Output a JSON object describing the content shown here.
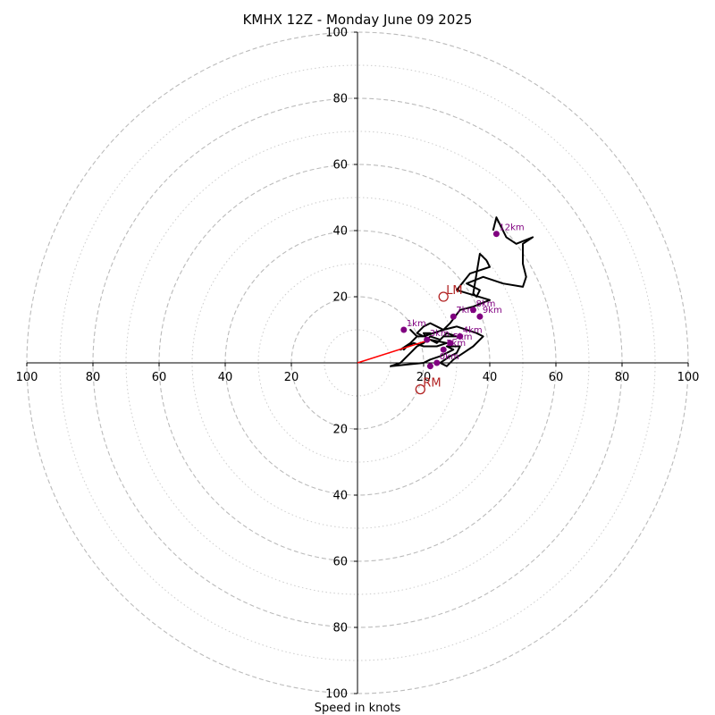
{
  "chart_data": {
    "type": "scatter",
    "subtype": "hodograph",
    "title": "KMHX 12Z - Monday June 09 2025",
    "xlabel": "Speed in knots",
    "ylabel": "",
    "xlim": [
      -100,
      100
    ],
    "ylim": [
      -100,
      100
    ],
    "tick_values": [
      20,
      40,
      60,
      80,
      100
    ],
    "tick_labels": {
      "left": [
        "100",
        "80",
        "60",
        "40",
        "20"
      ],
      "right": [
        "20",
        "40",
        "60",
        "80",
        "100"
      ],
      "top": [
        "20",
        "40",
        "60",
        "80",
        "100"
      ],
      "bottom": [
        "20",
        "40",
        "60",
        "80",
        "100"
      ]
    },
    "rings_dashed": [
      20,
      40,
      60,
      80,
      100
    ],
    "rings_dotted": [
      10,
      30,
      50,
      70,
      90
    ],
    "grid": true,
    "colors": {
      "trace": "#000000",
      "height_markers": "#800080",
      "storm_motion": "#b22222",
      "mean_wind_vector": "#ff0000",
      "grid": "#bbbbbb"
    },
    "hodograph_trace": {
      "x": [
        21,
        20,
        22,
        20,
        18,
        17,
        16,
        18,
        16,
        14,
        16,
        13,
        15,
        17,
        20,
        24,
        27,
        22,
        24,
        26,
        30,
        27,
        25,
        22,
        20,
        18,
        16,
        13,
        10,
        20,
        22,
        25,
        27,
        29,
        27,
        31,
        30,
        28,
        25,
        27,
        29,
        32,
        35,
        38,
        36,
        33,
        30,
        26,
        23,
        20,
        18,
        20,
        22,
        24,
        26,
        28,
        31,
        35,
        40,
        30,
        34,
        40,
        39,
        37,
        35,
        36,
        37,
        33,
        38,
        44,
        50,
        51,
        50,
        50,
        53,
        48,
        45,
        42,
        41
      ],
      "y": [
        7,
        9,
        9,
        8,
        8,
        9,
        10,
        8,
        6,
        4,
        6,
        4,
        5,
        6,
        5,
        5,
        6,
        7,
        6,
        8,
        8,
        9,
        7,
        8,
        6,
        5,
        3,
        0,
        -1,
        0,
        1,
        2,
        3,
        4,
        5,
        5,
        3,
        2,
        0,
        -1,
        1,
        3,
        5,
        8,
        9,
        10,
        11,
        10,
        9,
        8,
        9,
        11,
        12,
        11,
        10,
        12,
        16,
        17,
        19,
        22,
        27,
        29,
        31,
        33,
        21,
        20,
        22,
        24,
        26,
        24,
        23,
        26,
        30,
        36,
        38,
        36,
        38,
        44,
        40
      ]
    },
    "height_markers": [
      {
        "label": "",
        "x": 22,
        "y": -1
      },
      {
        "label": "0km",
        "x": 24,
        "y": 0
      },
      {
        "label": "2km",
        "x": 26,
        "y": 4
      },
      {
        "label": "1km",
        "x": 14,
        "y": 10
      },
      {
        "label": "3km",
        "x": 21,
        "y": 7
      },
      {
        "label": "4km",
        "x": 31,
        "y": 8
      },
      {
        "label": "5km",
        "x": 28,
        "y": 6
      },
      {
        "label": "7km",
        "x": 29,
        "y": 14
      },
      {
        "label": "8km",
        "x": 35,
        "y": 16
      },
      {
        "label": "9km",
        "x": 37,
        "y": 14
      },
      {
        "label": "12km",
        "x": 42,
        "y": 39
      }
    ],
    "storm_motion": [
      {
        "label": "LM",
        "x": 26,
        "y": 20
      },
      {
        "label": "RM",
        "x": 19,
        "y": -8
      }
    ],
    "mean_wind_vector": {
      "x": 22,
      "y": 7
    }
  }
}
